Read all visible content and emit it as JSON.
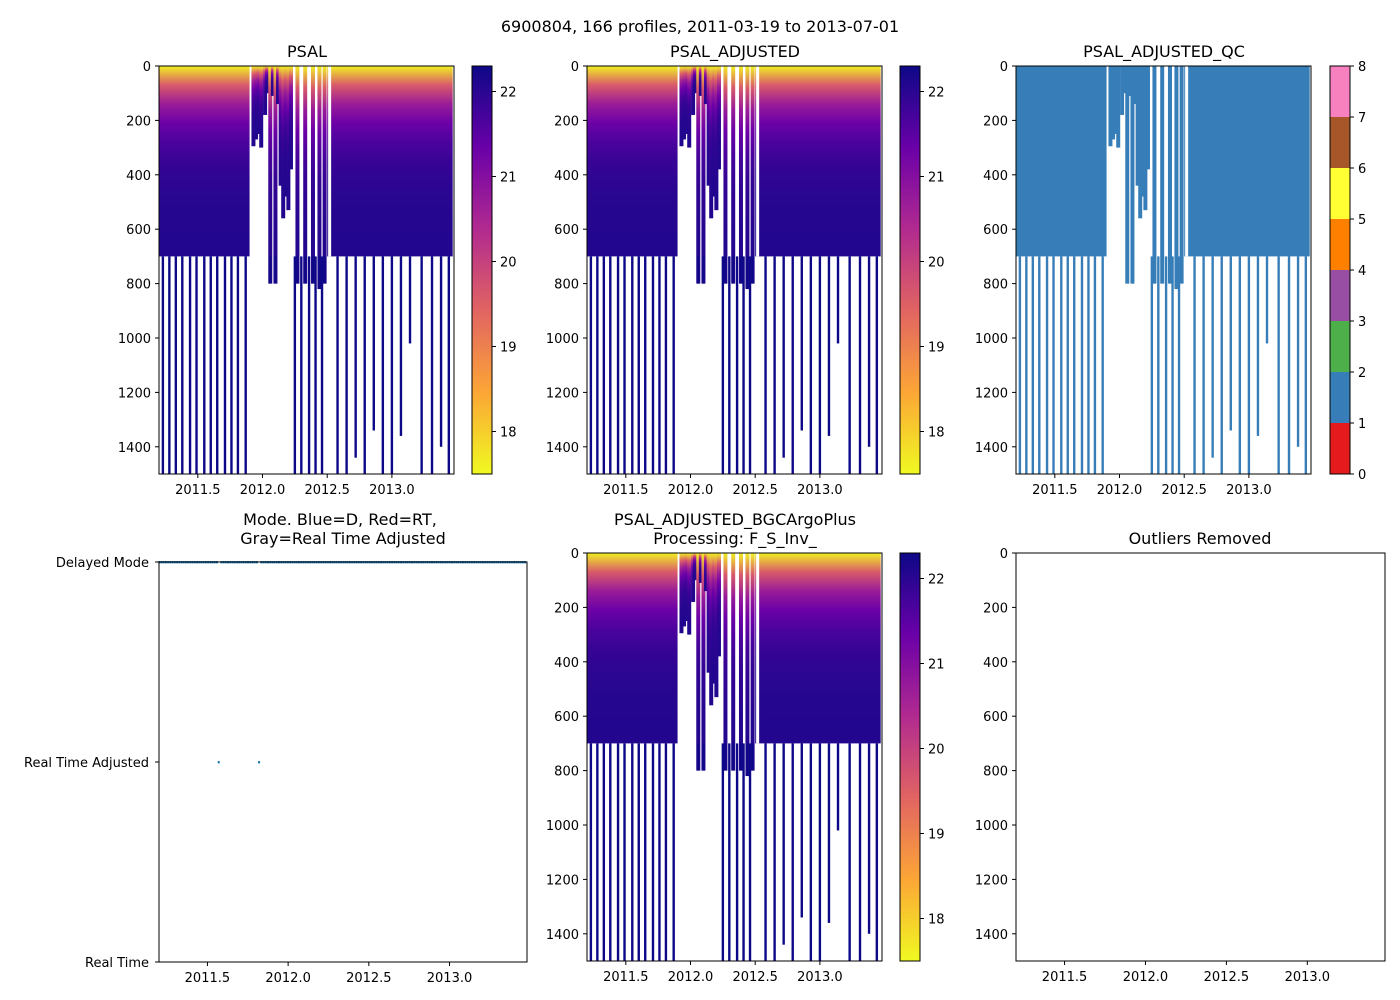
{
  "figure": {
    "suptitle": "6900804, 166 profiles, 2011-03-19 to 2013-07-01",
    "float_id": "6900804",
    "profile_count": 166,
    "date_start": "2011-03-19",
    "date_end": "2013-07-01"
  },
  "colors": {
    "plasma_r": [
      "#f0f921",
      "#fca636",
      "#e16462",
      "#b12a90",
      "#6a00a8",
      "#0d0887"
    ],
    "qc1": "#377eb8",
    "mode_dots": "#1f77b4"
  },
  "chart_data": [
    {
      "type": "heatmap",
      "id": "psal",
      "title": "PSAL",
      "xlabel": "",
      "ylabel": "",
      "x_range": [
        2011.2,
        2013.48
      ],
      "x_ticks": [
        "2011.5",
        "2012.0",
        "2012.5",
        "2013.0"
      ],
      "y_range": [
        0,
        1500
      ],
      "y_inverted": true,
      "y_ticks": [
        "0",
        "200",
        "400",
        "600",
        "800",
        "1000",
        "1200",
        "1400"
      ],
      "colorbar": {
        "range": [
          17.5,
          22.3
        ],
        "ticks": [
          "18",
          "19",
          "20",
          "21",
          "22"
        ],
        "cmap": "plasma_r"
      },
      "value_model": {
        "surface_salinity": 17.6,
        "deep_salinity": 22.1,
        "halocline_depth": 120
      },
      "profiles": "shared"
    },
    {
      "type": "heatmap",
      "id": "psal_adjusted",
      "title": "PSAL_ADJUSTED",
      "xlabel": "",
      "ylabel": "",
      "x_range": [
        2011.2,
        2013.48
      ],
      "x_ticks": [
        "2011.5",
        "2012.0",
        "2012.5",
        "2013.0"
      ],
      "y_range": [
        0,
        1500
      ],
      "y_inverted": true,
      "y_ticks": [
        "0",
        "200",
        "400",
        "600",
        "800",
        "1000",
        "1200",
        "1400"
      ],
      "colorbar": {
        "range": [
          17.5,
          22.3
        ],
        "ticks": [
          "18",
          "19",
          "20",
          "21",
          "22"
        ],
        "cmap": "plasma_r"
      },
      "profiles": "shared"
    },
    {
      "type": "heatmap",
      "id": "psal_adjusted_qc",
      "title": "PSAL_ADJUSTED_QC",
      "xlabel": "",
      "ylabel": "",
      "x_range": [
        2011.2,
        2013.48
      ],
      "x_ticks": [
        "2011.5",
        "2012.0",
        "2012.5",
        "2013.0"
      ],
      "y_range": [
        0,
        1500
      ],
      "y_inverted": true,
      "y_ticks": [
        "0",
        "200",
        "400",
        "600",
        "800",
        "1000",
        "1200",
        "1400"
      ],
      "qc_value_shown": 1,
      "colorbar": {
        "range": [
          0,
          8
        ],
        "ticks": [
          "0",
          "1",
          "2",
          "3",
          "4",
          "5",
          "6",
          "7",
          "8"
        ],
        "classes": [
          {
            "flag": 0,
            "color": "#e41a1c"
          },
          {
            "flag": 1,
            "color": "#377eb8"
          },
          {
            "flag": 2,
            "color": "#4daf4a"
          },
          {
            "flag": 3,
            "color": "#984ea3"
          },
          {
            "flag": 4,
            "color": "#ff7f00"
          },
          {
            "flag": 5,
            "color": "#ffff33"
          },
          {
            "flag": 6,
            "color": "#a65628"
          },
          {
            "flag": 7,
            "color": "#f781bf"
          },
          {
            "flag": 8,
            "color": "#999999"
          }
        ]
      },
      "profiles": "shared"
    },
    {
      "type": "scatter",
      "id": "mode",
      "title_lines": [
        "Mode. Blue=D, Red=RT,",
        "Gray=Real Time Adjusted"
      ],
      "x_range": [
        2011.2,
        2013.48
      ],
      "x_ticks": [
        "2011.5",
        "2012.0",
        "2012.5",
        "2013.0"
      ],
      "y_categories": [
        "Real Time",
        "Real Time Adjusted",
        "Delayed Mode"
      ],
      "points": [
        {
          "x": 2011.57,
          "mode": "Real Time Adjusted"
        },
        {
          "x": 2011.82,
          "mode": "Real Time Adjusted"
        }
      ],
      "delayed_mode_all_other_profiles": true
    },
    {
      "type": "heatmap",
      "id": "psal_bgc",
      "title_lines": [
        "PSAL_ADJUSTED_BGCArgoPlus",
        "Processing: F_S_Inv_"
      ],
      "x_range": [
        2011.2,
        2013.48
      ],
      "x_ticks": [
        "2011.5",
        "2012.0",
        "2012.5",
        "2013.0"
      ],
      "y_range": [
        0,
        1500
      ],
      "y_inverted": true,
      "y_ticks": [
        "0",
        "200",
        "400",
        "600",
        "800",
        "1000",
        "1200",
        "1400"
      ],
      "colorbar": {
        "range": [
          17.5,
          22.3
        ],
        "ticks": [
          "18",
          "19",
          "20",
          "21",
          "22"
        ],
        "cmap": "plasma_r"
      },
      "profiles": "shared"
    },
    {
      "type": "scatter",
      "id": "outliers",
      "title": "Outliers Removed",
      "x_range": [
        2011.2,
        2013.48
      ],
      "x_ticks": [
        "2011.5",
        "2012.0",
        "2012.5",
        "2013.0"
      ],
      "y_range": [
        0,
        1500
      ],
      "y_inverted": true,
      "y_ticks": [
        "0",
        "200",
        "400",
        "600",
        "800",
        "1000",
        "1200",
        "1400"
      ],
      "points": []
    }
  ],
  "profile_data": {
    "description_units": "time in decimal year, depth in dbar",
    "dense_segments": [
      {
        "t_start": 2011.2,
        "t_end": 2011.9,
        "max_depth": 700
      },
      {
        "t_start": 2012.5,
        "t_end": 2013.47,
        "max_depth": 700
      }
    ],
    "deep_profiles": [
      {
        "t": 2011.23,
        "depth": 1500
      },
      {
        "t": 2011.28,
        "depth": 1500
      },
      {
        "t": 2011.33,
        "depth": 1500
      },
      {
        "t": 2011.38,
        "depth": 1500
      },
      {
        "t": 2011.44,
        "depth": 1500
      },
      {
        "t": 2011.49,
        "depth": 1500
      },
      {
        "t": 2011.55,
        "depth": 1500
      },
      {
        "t": 2011.6,
        "depth": 1500
      },
      {
        "t": 2011.65,
        "depth": 1500
      },
      {
        "t": 2011.71,
        "depth": 1500
      },
      {
        "t": 2011.76,
        "depth": 1500
      },
      {
        "t": 2011.81,
        "depth": 1500
      },
      {
        "t": 2011.87,
        "depth": 1500
      },
      {
        "t": 2012.25,
        "depth": 1500
      },
      {
        "t": 2012.3,
        "depth": 1500
      },
      {
        "t": 2012.36,
        "depth": 1500
      },
      {
        "t": 2012.41,
        "depth": 1500
      },
      {
        "t": 2012.46,
        "depth": 1500
      },
      {
        "t": 2012.58,
        "depth": 1500
      },
      {
        "t": 2012.65,
        "depth": 1500
      },
      {
        "t": 2012.72,
        "depth": 1440
      },
      {
        "t": 2012.79,
        "depth": 1500
      },
      {
        "t": 2012.86,
        "depth": 1340
      },
      {
        "t": 2012.93,
        "depth": 1500
      },
      {
        "t": 2013.0,
        "depth": 1500
      },
      {
        "t": 2013.07,
        "depth": 1360
      },
      {
        "t": 2013.14,
        "depth": 1020
      },
      {
        "t": 2013.23,
        "depth": 1500
      },
      {
        "t": 2013.31,
        "depth": 1500
      },
      {
        "t": 2013.38,
        "depth": 1400
      },
      {
        "t": 2013.44,
        "depth": 1500
      }
    ],
    "gap_profiles": [
      {
        "t": 2011.93,
        "depth": 295
      },
      {
        "t": 2011.95,
        "depth": 270
      },
      {
        "t": 2011.97,
        "depth": 250
      },
      {
        "t": 2011.99,
        "depth": 300
      },
      {
        "t": 2012.02,
        "depth": 180
      },
      {
        "t": 2012.035,
        "depth": 100
      },
      {
        "t": 2012.06,
        "depth": 800
      },
      {
        "t": 2012.08,
        "depth": 110
      },
      {
        "t": 2012.1,
        "depth": 800
      },
      {
        "t": 2012.12,
        "depth": 140
      },
      {
        "t": 2012.14,
        "depth": 440
      },
      {
        "t": 2012.16,
        "depth": 560
      },
      {
        "t": 2012.18,
        "depth": 480
      },
      {
        "t": 2012.2,
        "depth": 530
      },
      {
        "t": 2012.22,
        "depth": 380
      },
      {
        "t": 2012.27,
        "depth": 800
      },
      {
        "t": 2012.33,
        "depth": 800
      },
      {
        "t": 2012.39,
        "depth": 800
      },
      {
        "t": 2012.44,
        "depth": 820
      },
      {
        "t": 2012.48,
        "depth": 800
      },
      {
        "t": 2012.51,
        "depth": 0
      }
    ],
    "shallow_notch_profiles": [
      {
        "t": 2012.53,
        "depth": 700,
        "top": 0
      }
    ]
  }
}
